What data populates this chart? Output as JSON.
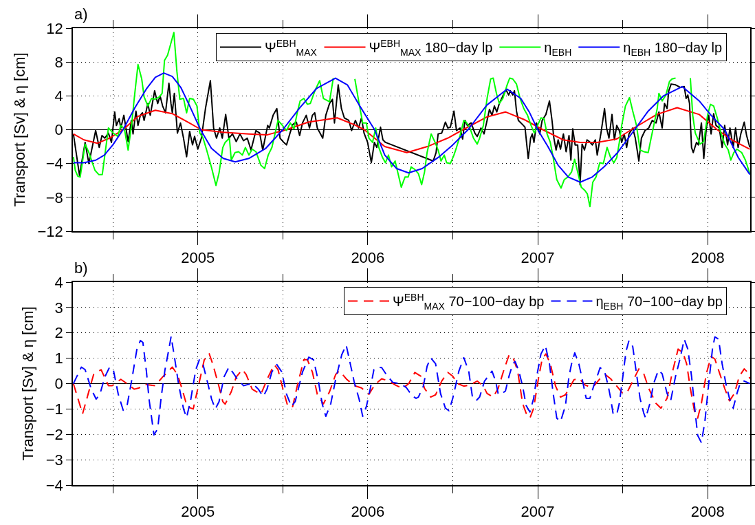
{
  "chart_data": [
    {
      "type": "line",
      "ylabel": "Transport [Sv] & η [cm]",
      "annotations": [
        "a)"
      ],
      "xlim": [
        2004.265,
        2008.25
      ],
      "xticks": [
        {
          "value": 2004.5,
          "label": null
        },
        2005,
        {
          "value": 2005.5,
          "label": null
        },
        2006,
        {
          "value": 2006.5,
          "label": null
        },
        2007,
        {
          "value": 2007.5,
          "label": null
        },
        2008
      ],
      "ylim": [
        -12,
        12
      ],
      "yticks": [
        -12,
        -8,
        -4,
        0,
        4,
        8,
        12
      ],
      "grid": true,
      "legend": "top right",
      "line_style": "solid",
      "ref_lines": [
        {
          "axis": "y",
          "value": 0,
          "color": "#000000"
        }
      ],
      "series": [
        {
          "name": "Ψ$^{EBH}$$_{MAX}$",
          "color": "#000000",
          "x": [
            2004.268,
            2004.304,
            2004.337,
            2004.359,
            2004.399,
            2004.42,
            2004.436,
            2004.453,
            2004.474,
            2004.492,
            2004.511,
            2004.521,
            2004.537,
            2004.547,
            2004.565,
            2004.59,
            2004.609,
            2004.619,
            2004.636,
            2004.648,
            2004.662,
            2004.674,
            2004.684,
            2004.706,
            2004.72,
            2004.746,
            2004.764,
            2004.778,
            2004.793,
            2004.81,
            2004.83,
            2004.842,
            2004.85,
            2004.862,
            2004.88,
            2004.898,
            2004.916,
            2004.934,
            2004.952,
            2004.969,
            2004.981,
            2005.0,
            2005.021,
            2005.045,
            2005.074,
            2005.093,
            2005.11,
            2005.129,
            2005.144,
            2005.164,
            2005.183,
            2005.204,
            2005.226,
            2005.248,
            2005.269,
            2005.291,
            2005.313,
            2005.342,
            2005.364,
            2005.382,
            2005.411,
            2005.421,
            2005.443,
            2005.465,
            2005.484,
            2005.501,
            2005.522,
            2005.541,
            2005.558,
            2005.58,
            2005.599,
            2005.616,
            2005.638,
            2005.657,
            2005.674,
            2005.688,
            2005.703,
            2005.735,
            2005.753,
            2005.775,
            2005.792,
            2005.804,
            2005.826,
            2005.845,
            2005.862,
            2005.888,
            2005.905,
            2005.927,
            2005.946,
            2005.963,
            2005.978,
            2005.999,
            2006.021,
            2006.039,
            2006.053,
            2006.075,
            2006.089,
            2006.104,
            2006.385,
            2006.402,
            2006.414,
            2006.435,
            2006.457,
            2006.471,
            2006.486,
            2006.507,
            2006.522,
            2006.543,
            2006.558,
            2006.572,
            2006.586,
            2006.608,
            2006.63,
            2006.644,
            2006.666,
            2006.684,
            2006.702,
            2006.716,
            2006.731,
            2006.745,
            2006.759,
            2006.774,
            2006.795,
            2006.814,
            2006.829,
            2006.839,
            2006.853,
            2006.863,
            2006.875,
            2006.886,
            2006.911,
            2006.925,
            2006.944,
            2006.958,
            2006.968,
            2006.978,
            2006.993,
            2007.012,
            2007.026,
            2007.048,
            2007.069,
            2007.084,
            2007.095,
            2007.108,
            2007.12,
            2007.134,
            2007.151,
            2007.167,
            2007.184,
            2007.195,
            2007.206,
            2007.22,
            2007.235,
            2007.249,
            2007.261,
            2007.275,
            2007.29,
            2007.304,
            2007.321,
            2007.339,
            2007.35,
            2007.372,
            2007.393,
            2007.405,
            2007.419,
            2007.437,
            2007.451,
            2007.465,
            2007.48,
            2007.494,
            2007.509,
            2007.523,
            2007.537,
            2007.559,
            2007.574,
            2007.595,
            2007.61,
            2007.631,
            2007.653,
            2007.674,
            2007.696,
            2007.713,
            2007.732,
            2007.746,
            2007.761,
            2007.771,
            2007.785,
            2007.811,
            2007.84,
            2007.862,
            2007.873,
            2007.883,
            2007.893,
            2007.905,
            2007.915,
            2007.934,
            2007.945,
            2007.963,
            2007.977,
            2007.992,
            2008.006,
            2008.02,
            2008.035,
            2008.049,
            2008.068,
            2008.085,
            2008.1,
            2008.117,
            2008.131,
            2008.15,
            2008.164,
            2008.179,
            2008.196,
            2008.215,
            2008.229,
            2008.248
          ],
          "values": [
            -0.5,
            -5.4,
            -1.5,
            -4.0,
            -0.1,
            -2.1,
            -0.7,
            -1.0,
            -0.4,
            -1.5,
            2.1,
            0.5,
            1.3,
            0.2,
            1.7,
            -1.4,
            1.1,
            -0.5,
            2.2,
            0.5,
            1.7,
            2.0,
            1.1,
            3.1,
            1.7,
            4.6,
            3.1,
            4.0,
            2.8,
            2.0,
            5.5,
            3.1,
            2.0,
            4.3,
            -0.4,
            0.8,
            -1.0,
            -3.2,
            -0.2,
            -1.8,
            -0.8,
            -2.3,
            -1.0,
            2.5,
            5.8,
            0.2,
            -1.0,
            0.2,
            -1.0,
            1.8,
            -1.0,
            -0.5,
            -1.4,
            -0.5,
            -1.3,
            -1.0,
            -2.4,
            -0.1,
            -0.4,
            -2.4,
            0.5,
            0.2,
            1.7,
            2.5,
            -1.0,
            -1.4,
            -1.8,
            -0.5,
            0.6,
            0.9,
            -0.7,
            0.8,
            1.7,
            0.2,
            1.7,
            2.0,
            0.2,
            -1.0,
            1.7,
            3.1,
            3.6,
            0.8,
            5.3,
            2.5,
            1.4,
            1.1,
            -0.1,
            1.1,
            0.2,
            1.4,
            -0.4,
            -1.5,
            -3.9,
            -1.5,
            -2.1,
            0.3,
            -1.2,
            -1.5,
            -3.7,
            -2.7,
            -0.5,
            -0.4,
            0.9,
            0.2,
            0.3,
            2.2,
            -0.1,
            0.2,
            -1.1,
            1.1,
            0.5,
            0.8,
            -0.4,
            -0.8,
            0.2,
            -0.5,
            1.1,
            2.4,
            1.7,
            2.8,
            2.1,
            3.1,
            4.0,
            4.7,
            4.1,
            4.6,
            4.1,
            4.6,
            2.2,
            1.1,
            0.6,
            0.3,
            -3.4,
            -1.0,
            -0.5,
            -1.5,
            0.8,
            -0.5,
            1.1,
            1.8,
            3.4,
            1.1,
            -1.0,
            -2.4,
            -1.2,
            -2.3,
            -0.5,
            -2.6,
            -0.7,
            -3.6,
            0.1,
            -1.8,
            -1.8,
            -6.5,
            -1.7,
            -2.4,
            -1.2,
            -1.4,
            -1.8,
            -1.2,
            -3.0,
            -0.4,
            2.5,
            0.2,
            -1.0,
            1.8,
            -1.2,
            0.5,
            -0.1,
            -1.5,
            -0.5,
            -2.1,
            -0.5,
            0.2,
            -1.0,
            -3.7,
            -1.0,
            -0.1,
            0.2,
            1.1,
            0.8,
            2.1,
            0.2,
            3.1,
            2.5,
            4.6,
            5.4,
            5.3,
            5.0,
            5.1,
            3.7,
            4.1,
            3.1,
            -2.1,
            -2.7,
            -1.5,
            -1.8,
            0.8,
            -3.4,
            0.2,
            1.7,
            -0.5,
            1.9,
            0.5,
            0.2,
            -2.1,
            0.5,
            -1.8,
            0.2,
            -2.1,
            0.2,
            -2.1,
            -0.4,
            0.9,
            -0.7,
            -2.1
          ]
        },
        {
          "name": "Ψ$^{EBH}$$_{MAX}$ 180−day lp",
          "color": "#ff0000",
          "x": [
            2004.268,
            2004.33,
            2004.41,
            2004.48,
            2004.56,
            2004.65,
            2004.75,
            2004.85,
            2004.95,
            2005.02,
            2005.15,
            2005.3,
            2005.41,
            2005.52,
            2005.65,
            2005.82,
            2005.92,
            2005.98,
            2006.1,
            2006.23,
            2006.35,
            2006.47,
            2006.56,
            2006.7,
            2006.81,
            2006.92,
            2007.03,
            2007.15,
            2007.25,
            2007.35,
            2007.465,
            2007.55,
            2007.7,
            2007.82,
            2007.95,
            2008.056,
            2008.15,
            2008.248
          ],
          "values": [
            -0.5,
            -1.2,
            -1.6,
            -1.0,
            0,
            1.6,
            2.3,
            1.9,
            0.8,
            0,
            -0.3,
            -0.5,
            -0.6,
            0,
            0.9,
            1.4,
            0.6,
            0,
            -2.0,
            -2.7,
            -2.0,
            -1.0,
            0,
            1.5,
            2.1,
            1.2,
            0,
            -1.2,
            -1.5,
            -1.5,
            -1.1,
            0,
            1.8,
            2.6,
            1.8,
            0,
            -1.3,
            -2.3
          ]
        },
        {
          "name": "η$_{EBH}$",
          "color": "#00ff00",
          "x": [
            2004.268,
            2004.279,
            2004.294,
            2004.308,
            2004.337,
            2004.359,
            2004.395,
            2004.417,
            2004.438,
            2004.474,
            2004.503,
            2004.529,
            2004.547,
            2004.568,
            2004.59,
            2004.612,
            2004.626,
            2004.648,
            2004.67,
            2004.684,
            2004.706,
            2004.728,
            2004.749,
            2004.775,
            2004.79,
            2004.804,
            2004.822,
            2004.84,
            2004.859,
            2004.877,
            2004.894,
            2004.916,
            2004.934,
            2004.952,
            2004.974,
            2004.995,
            2005.012,
            2005.031,
            2005.052,
            2005.081,
            2005.107,
            2005.125,
            2005.147,
            2005.161,
            2005.186,
            2005.197,
            2005.219,
            2005.24,
            2005.262,
            2005.28,
            2005.301,
            2005.32,
            2005.342,
            2005.371,
            2005.393,
            2005.414,
            2005.436,
            2005.455,
            2005.472,
            2005.494,
            2005.522,
            2005.544,
            2005.566,
            2005.587,
            2005.602,
            2005.624,
            2005.645,
            2005.662,
            2005.691,
            2005.717,
            2005.739,
            2005.775,
            2005.797,
            2005.86,
            2005.924,
            2005.949,
            2005.97,
            2005.992,
            2006.007,
            2006.028,
            2006.047,
            2006.065,
            2006.087,
            2006.104,
            2006.122,
            2006.14,
            2006.161,
            2006.176,
            2006.197,
            2006.219,
            2006.238,
            2006.255,
            2006.277,
            2006.298,
            2006.317,
            2006.334,
            2006.349,
            2006.373,
            2006.396,
            2006.414,
            2006.431,
            2006.45,
            2006.464,
            2006.486,
            2006.507,
            2006.522,
            2006.543,
            2006.565,
            2006.579,
            2006.601,
            2006.622,
            2006.644,
            2006.658,
            2006.68,
            2006.702,
            2006.723,
            2006.738,
            2006.757,
            2006.774,
            2006.795,
            2006.82,
            2006.835,
            2006.853,
            2006.875,
            2006.896,
            2006.918,
            2006.94,
            2006.961,
            2006.98,
            2007.001,
            2007.019,
            2007.037,
            2007.055,
            2007.074,
            2007.091,
            2007.112,
            2007.137,
            2007.156,
            2007.177,
            2007.199,
            2007.217,
            2007.235,
            2007.256,
            2007.278,
            2007.292,
            2007.307,
            2007.324,
            2007.343,
            2007.365,
            2007.386,
            2007.408,
            2007.429,
            2007.448,
            2007.465,
            2007.48,
            2007.494,
            2007.516,
            2007.54,
            2007.559,
            2007.581,
            2007.602,
            2007.624,
            2007.65,
            2007.667,
            2007.689,
            2007.703,
            2007.713,
            2007.732,
            2007.754,
            2007.775,
            2007.79,
            2007.811,
            2007.85,
            2007.898,
            2007.912,
            2007.927,
            2007.955,
            2007.977,
            2007.999,
            2008.016,
            2008.035,
            2008.056,
            2008.078,
            2008.1,
            2008.121,
            2008.136,
            2008.154,
            2008.172,
            2008.2,
            2008.222,
            2008.248
          ],
          "values": [
            -3.2,
            -4.8,
            -5.5,
            -5.6,
            -1.7,
            -2.7,
            -4.8,
            -5.3,
            -5.3,
            0.2,
            -0.4,
            -0.8,
            0.5,
            0.1,
            -2.4,
            0.8,
            3.7,
            7.7,
            6.0,
            3.9,
            2.8,
            3.7,
            3.6,
            3.9,
            4.3,
            8.2,
            8.8,
            10.1,
            11.5,
            6.9,
            3.6,
            3.7,
            2.0,
            3.7,
            3.6,
            2.8,
            -0.4,
            -1.0,
            -2.4,
            -4.5,
            -6.6,
            -5.1,
            -2.1,
            -1.5,
            -1.0,
            -3.6,
            -2.7,
            -2.6,
            -3.0,
            -2.1,
            -3.0,
            -2.3,
            -2.6,
            -4.2,
            -4.6,
            -3.0,
            -2.1,
            -0.4,
            1.1,
            0.6,
            -0.1,
            0.8,
            0.1,
            2.2,
            3.4,
            3.7,
            3.0,
            3.1,
            4.7,
            5.8,
            3.7,
            3.3,
            6.1,
            null,
            6.0,
            3.1,
            0.8,
            0.8,
            -1.0,
            -1.5,
            0.2,
            -2.1,
            -3.3,
            -3.9,
            -3.0,
            -4.4,
            -3.7,
            -5.0,
            -6.8,
            -5.6,
            -5.6,
            -4.4,
            -4.7,
            -5.2,
            -6.5,
            -5.0,
            -2.7,
            -0.5,
            -1.5,
            -2.4,
            -3.7,
            -3.0,
            -3.9,
            -4.0,
            -3.0,
            -2.1,
            -0.7,
            1.1,
            0.9,
            0.2,
            -1.0,
            -1.7,
            -1.0,
            0.5,
            3.7,
            6.0,
            6.1,
            4.3,
            3.1,
            3.7,
            5.3,
            6.1,
            6.0,
            5.4,
            3.7,
            2.5,
            1.7,
            0.5,
            -0.4,
            0.6,
            1.4,
            1.3,
            -0.5,
            -1.5,
            -3.3,
            -5.9,
            -6.9,
            -5.9,
            -5.6,
            -5.0,
            -3.5,
            -5.0,
            -6.8,
            -7.2,
            -7.6,
            -9.1,
            -6.2,
            -5.6,
            -3.9,
            -4.0,
            -2.1,
            -3.3,
            -3.9,
            -3.3,
            -1.5,
            0.5,
            2.8,
            3.8,
            2.2,
            0.5,
            -2.4,
            -2.6,
            -2.7,
            -1.0,
            1.1,
            2.5,
            4.3,
            3.4,
            4.1,
            5.7,
            6.0,
            6.1,
            null,
            6.1,
            1.7,
            -0.4,
            -1.7,
            -1.4,
            1.7,
            3.0,
            2.8,
            1.4,
            -0.4,
            -1.7,
            -2.4,
            -3.6,
            -2.7,
            -2.3,
            -2.7,
            -3.6,
            -5.2
          ]
        },
        {
          "name": "η$_{EBH}$ 180−day lp",
          "color": "#0000ff",
          "x": [
            2004.268,
            2004.33,
            2004.4,
            2004.45,
            2004.5,
            2004.56,
            2004.63,
            2004.7,
            2004.75,
            2004.8,
            2004.85,
            2004.9,
            2004.95,
            2005.016,
            2005.08,
            2005.15,
            2005.22,
            2005.3,
            2005.4,
            2005.5,
            2005.6,
            2005.7,
            2005.81,
            2005.88,
            2005.95,
            2006.04,
            2006.1,
            2006.17,
            2006.24,
            2006.32,
            2006.42,
            2006.5,
            2006.59,
            2006.7,
            2006.82,
            2006.9,
            2006.95,
            2007.0,
            2007.06,
            2007.12,
            2007.18,
            2007.25,
            2007.32,
            2007.39,
            2007.47,
            2007.57,
            2007.65,
            2007.74,
            2007.85,
            2007.95,
            2008.02,
            2008.1,
            2008.18,
            2008.248
          ],
          "values": [
            -3.9,
            -3.9,
            -3.6,
            -3.0,
            -1.8,
            0,
            2.6,
            4.9,
            6.2,
            6.7,
            6.3,
            5.0,
            2.9,
            0,
            -2.2,
            -3.4,
            -3.8,
            -3.4,
            -2.2,
            0,
            2.6,
            4.9,
            6.1,
            5.3,
            2.9,
            0,
            -3.0,
            -4.6,
            -5.1,
            -4.6,
            -3.2,
            -1.8,
            0,
            2.9,
            4.8,
            3.7,
            2.1,
            0,
            -2.0,
            -4.2,
            -5.6,
            -6.2,
            -5.6,
            -4.4,
            -2.7,
            0,
            2.2,
            4.0,
            5.1,
            3.4,
            1.7,
            0,
            -3.3,
            -5.3
          ]
        }
      ]
    },
    {
      "type": "line",
      "ylabel": "Transport [Sv] & η [cm]",
      "annotations": [
        "b)"
      ],
      "xlim": [
        2004.265,
        2008.25
      ],
      "xticks": [
        {
          "value": 2004.5,
          "label": null
        },
        2005,
        {
          "value": 2005.5,
          "label": null
        },
        2006,
        {
          "value": 2006.5,
          "label": null
        },
        2007,
        {
          "value": 2007.5,
          "label": null
        },
        2008
      ],
      "ylim": [
        -4,
        4
      ],
      "yticks": [
        -4,
        -3,
        -2,
        -1,
        0,
        1,
        2,
        3,
        4
      ],
      "grid": true,
      "legend": "top right",
      "line_style": "dashed",
      "ref_lines": [
        {
          "axis": "y",
          "value": 0,
          "color": "#000000"
        }
      ],
      "series": [
        {
          "name": "Ψ$^{EBH}$$_{MAX}$ 70−100−day bp",
          "color": "#ff0000",
          "x": [
            2004.268,
            2004.322,
            2004.387,
            2004.431,
            2004.474,
            2004.496,
            2004.547,
            2004.59,
            2004.626,
            2004.655,
            2004.691,
            2004.749,
            2004.793,
            2004.85,
            2004.88,
            2004.908,
            2004.937,
            2004.973,
            2005.009,
            2005.038,
            2005.067,
            2005.089,
            2005.125,
            2005.147,
            2005.161,
            2005.197,
            2005.226,
            2005.262,
            2005.284,
            2005.32,
            2005.371,
            2005.414,
            2005.45,
            2005.472,
            2005.501,
            2005.53,
            2005.558,
            2005.587,
            2005.624,
            2005.645,
            2005.674,
            2005.703,
            2005.739,
            2005.775,
            2005.811,
            2005.833,
            2005.876,
            2005.92,
            2005.963,
            2006.007,
            2006.043,
            2006.082,
            2006.125,
            2006.161,
            2006.205,
            2006.241,
            2006.277,
            2006.313,
            2006.334,
            2006.37,
            2006.399,
            2006.435,
            2006.471,
            2006.5,
            2006.529,
            2006.565,
            2006.601,
            2006.644,
            2006.68,
            2006.702,
            2006.738,
            2006.767,
            2006.803,
            2006.831,
            2006.853,
            2006.882,
            2006.911,
            2006.932,
            2006.954,
            2006.976,
            2007.004,
            2007.026,
            2007.048,
            2007.074,
            2007.105,
            2007.134,
            2007.163,
            2007.192,
            2007.213,
            2007.242,
            2007.278,
            2007.314,
            2007.336,
            2007.372,
            2007.401,
            2007.429,
            2007.465,
            2007.501,
            2007.53,
            2007.566,
            2007.595,
            2007.624,
            2007.653,
            2007.696,
            2007.725,
            2007.761,
            2007.79,
            2007.826,
            2007.855,
            2007.876,
            2007.898,
            2007.927,
            2007.941,
            2007.963,
            2007.992,
            2008.02,
            2008.042,
            2008.071,
            2008.1,
            2008.128,
            2008.157,
            2008.186,
            2008.215,
            2008.236,
            2008.248
          ],
          "values": [
            0,
            -1.19,
            0.36,
            0.55,
            -0.08,
            -0.08,
            0.17,
            -0.03,
            -0.22,
            -0.17,
            -0.03,
            -0.08,
            0.26,
            0.65,
            0.36,
            -0.22,
            -0.91,
            -1.0,
            0.07,
            0.94,
            1.18,
            0.75,
            -0.13,
            -0.71,
            -0.81,
            -0.32,
            0.26,
            0.55,
            0.36,
            -0.22,
            -0.42,
            0.26,
            0.75,
            0.55,
            -0.22,
            -0.91,
            -0.91,
            -0.03,
            0.94,
            0.94,
            0.46,
            -0.42,
            -0.8,
            -0.32,
            0.36,
            0.5,
            0.17,
            -0.08,
            -0.17,
            -0.42,
            -0.03,
            0.19,
            0.1,
            -0.05,
            -0.19,
            0,
            0.44,
            0.29,
            -0.19,
            -0.53,
            -0.44,
            0.1,
            0.44,
            0.29,
            0,
            -0.1,
            -0.05,
            0.1,
            -0.1,
            -0.39,
            -0.53,
            -0.19,
            0.58,
            1.12,
            1.07,
            0.49,
            -0.78,
            -1.17,
            -1.36,
            -0.97,
            0.19,
            0.97,
            1.17,
            0.78,
            -0.1,
            -0.53,
            -0.44,
            -0.1,
            0.15,
            0.21,
            -0.05,
            -0.15,
            -0.05,
            0.24,
            0.34,
            0.19,
            -0.1,
            -0.39,
            -0.29,
            0.19,
            0.58,
            0.39,
            -0.19,
            -0.78,
            -0.97,
            -0.58,
            0.39,
            1.36,
            1.21,
            0.78,
            -0.19,
            -1.26,
            -1.36,
            -0.78,
            0.39,
            1.07,
            0.97,
            0.39,
            -0.19,
            -0.68,
            -0.39,
            0.29,
            0.58,
            0.44,
            0.19
          ]
        },
        {
          "name": "η$_{EBH}$ 70−100−day bp",
          "color": "#0000ff",
          "x": [
            2004.268,
            2004.315,
            2004.337,
            2004.373,
            2004.402,
            2004.424,
            2004.453,
            2004.481,
            2004.503,
            2004.532,
            2004.561,
            2004.583,
            2004.612,
            2004.641,
            2004.662,
            2004.677,
            2004.698,
            2004.713,
            2004.742,
            2004.764,
            2004.785,
            2004.807,
            2004.829,
            2004.843,
            2004.865,
            2004.887,
            2004.916,
            2004.934,
            2004.959,
            2004.988,
            2005.009,
            2005.031,
            2005.06,
            2005.081,
            2005.103,
            2005.125,
            2005.154,
            2005.183,
            2005.204,
            2005.233,
            2005.269,
            2005.298,
            2005.327,
            2005.356,
            2005.385,
            2005.407,
            2005.436,
            2005.465,
            2005.494,
            2005.522,
            2005.551,
            2005.573,
            2005.616,
            2005.653,
            2005.681,
            2005.71,
            2005.732,
            2005.753,
            2005.782,
            2005.811,
            2005.847,
            2005.873,
            2005.898,
            2005.92,
            2005.949,
            2005.97,
            2005.992,
            2006.014,
            2006.036,
            2006.058,
            2006.082,
            2006.111,
            2006.147,
            2006.19,
            2006.226,
            2006.262,
            2006.284,
            2006.298,
            2006.327,
            2006.349,
            2006.37,
            2006.399,
            2006.428,
            2006.457,
            2006.478,
            2006.5,
            2006.536,
            2006.565,
            2006.594,
            2006.615,
            2006.637,
            2006.658,
            2006.687,
            2006.731,
            2006.752,
            2006.767,
            2006.781,
            2006.81,
            2006.831,
            2006.853,
            2006.867,
            2006.889,
            2006.911,
            2006.932,
            2006.954,
            2006.976,
            2006.997,
            2007.019,
            2007.045,
            2007.069,
            2007.091,
            2007.112,
            2007.134,
            2007.163,
            2007.184,
            2007.199,
            2007.218,
            2007.242,
            2007.264,
            2007.285,
            2007.307,
            2007.329,
            2007.35,
            2007.367,
            2007.393,
            2007.415,
            2007.429,
            2007.444,
            2007.465,
            2007.48,
            2007.501,
            2007.519,
            2007.537,
            2007.559,
            2007.581,
            2007.602,
            2007.624,
            2007.635,
            2007.66,
            2007.682,
            2007.71,
            2007.732,
            2007.761,
            2007.782,
            2007.811,
            2007.837,
            2007.862,
            2007.883,
            2007.905,
            2007.924,
            2007.941,
            2007.963,
            2007.984,
            2008.006,
            2008.028,
            2008.042,
            2008.064,
            2008.085,
            2008.107,
            2008.128,
            2008.15,
            2008.172,
            2008.193,
            2008.215,
            2008.248
          ],
          "values": [
            0,
            0.65,
            0.55,
            -0.22,
            -0.61,
            -0.42,
            0.26,
            0.65,
            0.55,
            -0.42,
            -1.05,
            -0.9,
            0.17,
            1.33,
            1.7,
            1.62,
            0.46,
            -0.61,
            -2.02,
            -1.78,
            -0.51,
            0.55,
            1.33,
            1.86,
            0.94,
            -0.03,
            -1.0,
            -1.34,
            -0.61,
            0.55,
            0.94,
            0.75,
            -0.03,
            -0.61,
            -1.0,
            -0.71,
            0.26,
            0.65,
            0.46,
            0.17,
            -0.08,
            -0.03,
            -0.03,
            -0.22,
            -0.51,
            -0.22,
            0.46,
            0.75,
            0.46,
            -0.42,
            -0.9,
            -0.71,
            0.46,
            1.04,
            0.94,
            0.07,
            -0.8,
            -1.29,
            -0.8,
            0.17,
            1.14,
            1.52,
            0.75,
            0.07,
            -0.61,
            -1.29,
            -0.9,
            -0.22,
            0.55,
            0.65,
            0.63,
            0.34,
            0.05,
            0,
            -0.15,
            -0.49,
            -0.58,
            -0.53,
            -0.1,
            0.68,
            1.02,
            0.78,
            -0.39,
            -0.97,
            -1.07,
            -0.58,
            0.49,
            1.02,
            0.49,
            -0.49,
            -0.68,
            -0.53,
            0.1,
            0.49,
            0.1,
            -0.39,
            -0.44,
            -0.29,
            0.29,
            0.78,
            0.87,
            0.49,
            -0.1,
            -0.87,
            -1.12,
            -0.58,
            0.39,
            1.17,
            1.5,
            0.78,
            -0.39,
            -1.36,
            -1.5,
            -0.87,
            0.29,
            0.78,
            1.21,
            0.78,
            0.1,
            -0.58,
            -0.58,
            -0.1,
            0.29,
            0.63,
            0.49,
            -0.1,
            -0.58,
            -1.21,
            -1.21,
            -0.78,
            0.29,
            1.26,
            1.7,
            1.46,
            0.39,
            -0.58,
            -1.17,
            -1.36,
            -0.78,
            0,
            0.53,
            0.39,
            -0.39,
            -0.68,
            0.29,
            0.97,
            1.75,
            1.36,
            0.29,
            -0.97,
            -2.04,
            -2.33,
            -1.46,
            0,
            1.36,
            1.84,
            1.75,
            0.78,
            0,
            -0.58,
            -0.97,
            -0.39,
            0.05,
            0.1,
            0
          ]
        }
      ]
    }
  ]
}
